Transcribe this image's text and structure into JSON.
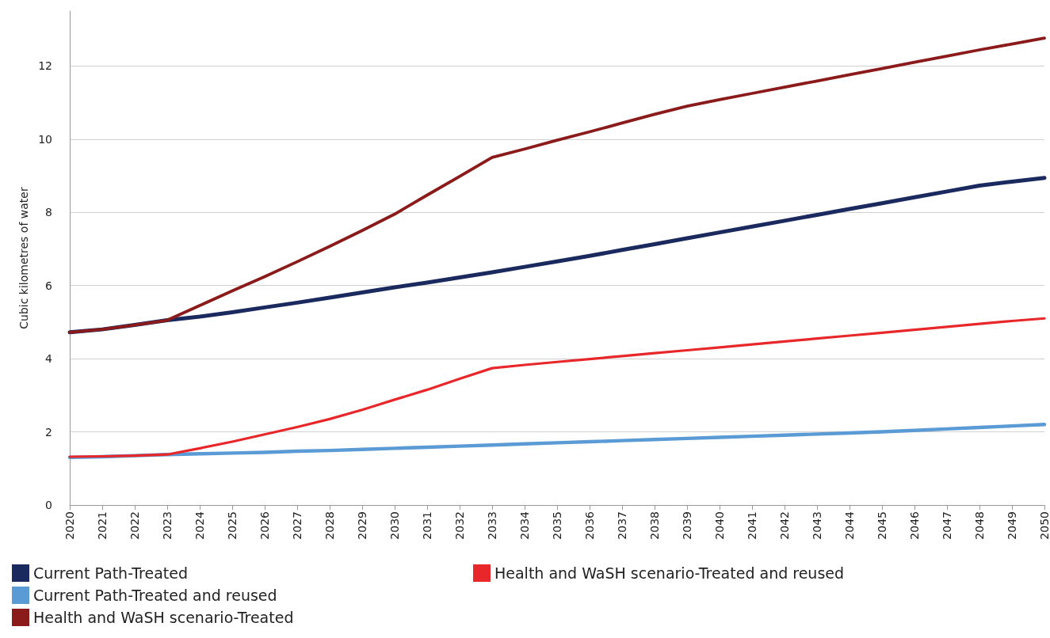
{
  "chart_data": {
    "type": "line",
    "ylabel": "Cubic kilometres of water",
    "categories": [
      "2020",
      "2021",
      "2022",
      "2023",
      "2024",
      "2025",
      "2026",
      "2027",
      "2028",
      "2029",
      "2030",
      "2031",
      "2032",
      "2033",
      "2034",
      "2035",
      "2036",
      "2037",
      "2038",
      "2039",
      "2040",
      "2041",
      "2042",
      "2043",
      "2044",
      "2045",
      "2046",
      "2047",
      "2048",
      "2049",
      "2050"
    ],
    "series": [
      {
        "name": "Current Path-Treated",
        "color": "#1b2a5e",
        "values": [
          4.72,
          4.8,
          4.92,
          5.05,
          5.15,
          5.27,
          5.4,
          5.53,
          5.67,
          5.81,
          5.95,
          6.08,
          6.22,
          6.36,
          6.51,
          6.66,
          6.81,
          6.97,
          7.13,
          7.29,
          7.45,
          7.61,
          7.77,
          7.93,
          8.09,
          8.25,
          8.41,
          8.57,
          8.73,
          8.84,
          8.94
        ]
      },
      {
        "name": "Current Path-Treated and reused",
        "color": "#5b9bd5",
        "values": [
          1.3,
          1.32,
          1.35,
          1.38,
          1.4,
          1.42,
          1.44,
          1.47,
          1.49,
          1.52,
          1.55,
          1.58,
          1.61,
          1.64,
          1.67,
          1.7,
          1.73,
          1.76,
          1.79,
          1.82,
          1.85,
          1.88,
          1.91,
          1.94,
          1.97,
          2.0,
          2.04,
          2.08,
          2.12,
          2.16,
          2.2
        ]
      },
      {
        "name": "Health and WaSH scenario-Treated",
        "color": "#8b1a1a",
        "values": [
          4.72,
          4.8,
          4.92,
          5.05,
          5.45,
          5.85,
          6.24,
          6.65,
          7.07,
          7.5,
          7.95,
          8.47,
          8.98,
          9.5,
          9.73,
          9.97,
          10.2,
          10.44,
          10.68,
          10.9,
          11.08,
          11.25,
          11.42,
          11.59,
          11.76,
          11.93,
          12.1,
          12.27,
          12.44,
          12.6,
          12.76
        ]
      },
      {
        "name": "Health and WaSH scenario-Treated and reused",
        "color": "#e8272a",
        "values": [
          1.32,
          1.33,
          1.35,
          1.38,
          1.55,
          1.73,
          1.93,
          2.13,
          2.35,
          2.6,
          2.88,
          3.15,
          3.45,
          3.74,
          3.83,
          3.91,
          3.99,
          4.07,
          4.15,
          4.23,
          4.31,
          4.39,
          4.47,
          4.55,
          4.63,
          4.71,
          4.79,
          4.87,
          4.95,
          5.03,
          5.1
        ]
      }
    ],
    "ylim": [
      0,
      13.5
    ],
    "yticks": [
      0,
      2,
      4,
      6,
      8,
      10,
      12
    ],
    "grid": "y",
    "legend": "bottom",
    "marker": "none",
    "line_style": "solid"
  }
}
